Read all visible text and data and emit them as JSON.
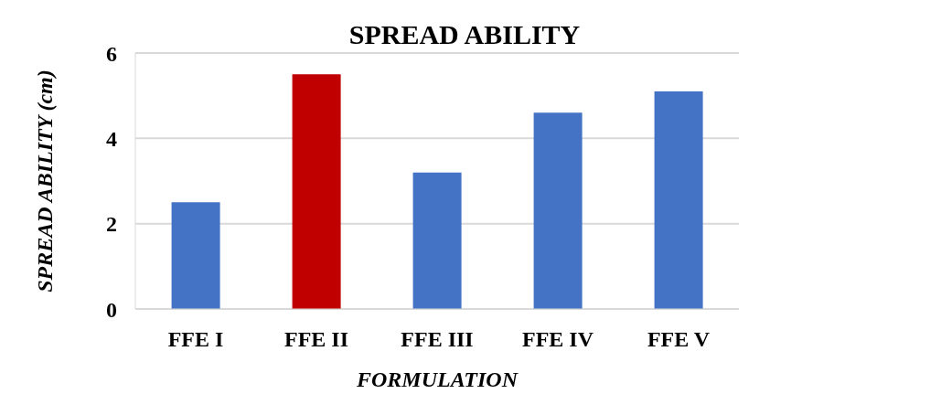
{
  "chart_data": {
    "type": "bar",
    "title": "SPREAD ABILITY",
    "xlabel": "FORMULATION",
    "ylabel": "SPREAD ABILITY (cm)",
    "categories": [
      "FFE I",
      "FFE II",
      "FFE III",
      "FFE IV",
      "FFE V"
    ],
    "values": [
      2.5,
      5.5,
      3.2,
      4.6,
      5.1
    ],
    "colors": [
      "#4472c4",
      "#c00000",
      "#4472c4",
      "#4472c4",
      "#4472c4"
    ],
    "ylim": [
      0,
      6
    ],
    "yticks": [
      0,
      2,
      4,
      6
    ],
    "grid": "y"
  }
}
